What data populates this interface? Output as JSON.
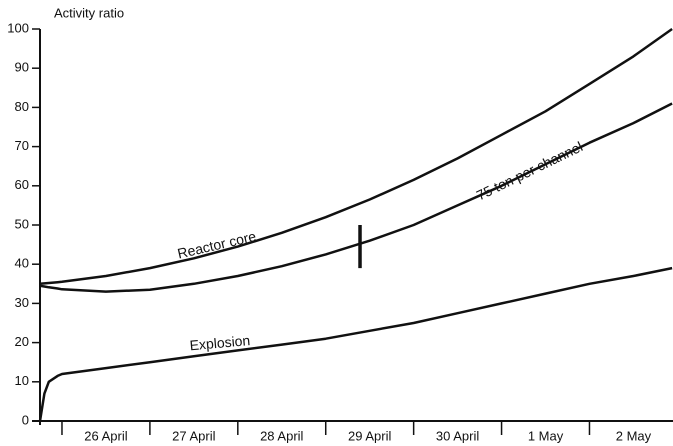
{
  "chart_data": {
    "type": "line",
    "y_axis_title": "Activity ratio",
    "x": [
      -0.25,
      -0.2,
      -0.15,
      -0.05,
      0,
      0.5,
      1,
      1.5,
      2,
      2.5,
      3,
      3.5,
      4,
      4.5,
      5,
      5.5,
      6,
      6.5,
      6.94
    ],
    "series": [
      {
        "name": "Reactor core",
        "color": "#111111",
        "values": [
          35,
          35.1,
          35.2,
          35.4,
          35.5,
          37,
          39,
          41.5,
          44.5,
          48,
          52,
          56.5,
          61.5,
          67,
          73,
          79,
          86,
          93,
          100
        ]
      },
      {
        "name": "75 ton per channel",
        "color": "#111111",
        "values": [
          34.5,
          34.3,
          34.1,
          33.8,
          33.6,
          33,
          33.5,
          35,
          37,
          39.5,
          42.5,
          46,
          50,
          55,
          60,
          65.5,
          71,
          76,
          81
        ]
      },
      {
        "name": "Explosion",
        "color": "#111111",
        "values": [
          0,
          7,
          10,
          11.5,
          12,
          13.5,
          15,
          16.5,
          18,
          19.5,
          21,
          23,
          25,
          27.5,
          30,
          32.5,
          35,
          37,
          39
        ]
      }
    ],
    "marker": {
      "x": 3.39,
      "y": [
        39,
        50
      ]
    },
    "xlim": [
      -0.25,
      6.95
    ],
    "ylim": [
      0,
      100
    ],
    "yticks": [
      0,
      10,
      20,
      30,
      40,
      50,
      60,
      70,
      80,
      90,
      100
    ],
    "day_boundaries": [
      0,
      1,
      2,
      3,
      4,
      5,
      6
    ],
    "xticks": [
      {
        "value": 0.5,
        "label": "26 April"
      },
      {
        "value": 1.5,
        "label": "27 April"
      },
      {
        "value": 2.5,
        "label": "28 April"
      },
      {
        "value": 3.5,
        "label": "29 April"
      },
      {
        "value": 4.5,
        "label": "30 April"
      },
      {
        "value": 5.5,
        "label": "1 May"
      },
      {
        "value": 6.5,
        "label": "2 May"
      }
    ]
  }
}
